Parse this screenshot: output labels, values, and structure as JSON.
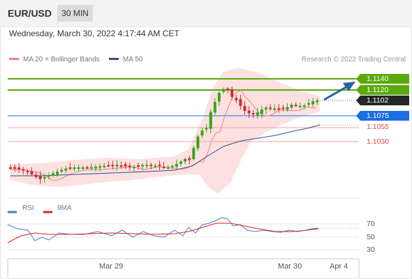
{
  "header": {
    "pair": "EUR/USD",
    "timeframe": "30 MIN"
  },
  "datetime": "Wednesday, March 30, 2022 4:17:44 AM CET",
  "legend": {
    "ma20_label": "MA 20 + Bollinger Bands",
    "ma50_label": "MA 50",
    "copyright": "Research © 2022 Trading Central",
    "ma20_color": "#f08080",
    "ma50_color": "#2b4f8c"
  },
  "levels": {
    "resistance_2": "1.1140",
    "resistance_1": "1.1120",
    "current": "1.1102",
    "pivot": "1.1075",
    "support_1": "1.1055",
    "support_2": "1.1030"
  },
  "rsi_legend": {
    "rsi_label": "RSI",
    "ma_label": "9MA",
    "rsi_color": "#4a78d6",
    "ma_color": "#e02020"
  },
  "rsi_axis": {
    "high": "70",
    "mid": "50",
    "low": "30"
  },
  "x_axis": {
    "label_1": "Mar 29",
    "label_2": "Mar 30",
    "label_3": "Apr 4"
  },
  "colors": {
    "up_candle": "#3aa317",
    "down_candle": "#d22b2b",
    "resistance": "#5aaa0d",
    "pivot": "#1d6de6",
    "support": "#e24545",
    "arrow": "#2e5fa3"
  }
}
